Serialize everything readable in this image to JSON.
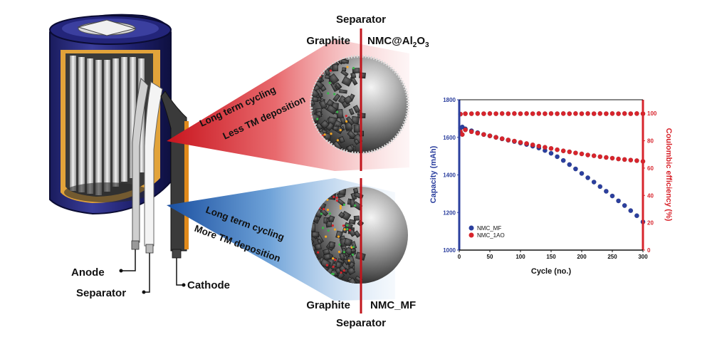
{
  "diagram": {
    "cell_labels": {
      "anode": "Anode",
      "separator": "Separator",
      "cathode": "Cathode"
    },
    "top_panel": {
      "separator": "Separator",
      "left": "Graphite",
      "right_prefix": "NMC@Al",
      "right_sub1": "2",
      "right_mid": "O",
      "right_sub2": "3",
      "beam_line1": "Long term cycling",
      "beam_line2": "Less TM deposition"
    },
    "bottom_panel": {
      "separator": "Separator",
      "left": "Graphite",
      "right": "NMC_MF",
      "beam_line1": "Long term cycling",
      "beam_line2": "More TM deposition"
    },
    "colors": {
      "red_beam": "#d7262e",
      "blue_beam": "#1f5fae",
      "separator_line": "#c0151c",
      "cell_blue": "#1d1f6b",
      "cell_orange": "#e08a1c"
    }
  },
  "chart_data": {
    "type": "scatter",
    "xlabel": "Cycle (no.)",
    "ylabel_left": "Capacity (mAh)",
    "ylabel_right": "Coulombic efficiency (%)",
    "xlim": [
      0,
      300
    ],
    "ylim_left": [
      1000,
      1800
    ],
    "ylim_right": [
      0,
      110
    ],
    "x_ticks": [
      "0",
      "50",
      "100",
      "150",
      "200",
      "250",
      "300"
    ],
    "y_ticks_left": [
      "1000",
      "1200",
      "1400",
      "1600",
      "1800"
    ],
    "y_ticks_right": [
      "0",
      "20",
      "40",
      "60",
      "80",
      "100"
    ],
    "legend_position": "bottom-left",
    "grid": false,
    "series": [
      {
        "name": "NMC_MF",
        "axis": "left",
        "color": "#2b3f9e",
        "x": [
          2,
          5,
          10,
          20,
          30,
          40,
          50,
          60,
          70,
          80,
          90,
          100,
          110,
          120,
          130,
          140,
          150,
          160,
          170,
          180,
          190,
          200,
          210,
          220,
          230,
          240,
          250,
          260,
          270,
          280,
          290,
          300
        ],
        "values": [
          1650,
          1655,
          1645,
          1635,
          1625,
          1615,
          1608,
          1600,
          1592,
          1585,
          1578,
          1570,
          1562,
          1553,
          1543,
          1530,
          1515,
          1497,
          1477,
          1455,
          1432,
          1408,
          1385,
          1362,
          1338,
          1313,
          1288,
          1262,
          1237,
          1210,
          1183,
          1150
        ]
      },
      {
        "name": "NMC_1AO",
        "axis": "left",
        "color": "#d8242c",
        "x": [
          2,
          5,
          10,
          20,
          30,
          40,
          50,
          60,
          70,
          80,
          90,
          100,
          110,
          120,
          130,
          140,
          150,
          160,
          170,
          180,
          190,
          200,
          210,
          220,
          230,
          240,
          250,
          260,
          270,
          280,
          290,
          300
        ],
        "values": [
          1630,
          1615,
          1640,
          1630,
          1622,
          1615,
          1608,
          1600,
          1593,
          1586,
          1580,
          1573,
          1567,
          1560,
          1553,
          1547,
          1541,
          1534,
          1528,
          1523,
          1517,
          1512,
          1506,
          1502,
          1497,
          1493,
          1489,
          1485,
          1482,
          1479,
          1476,
          1472
        ]
      },
      {
        "name": "Coulombic efficiency",
        "axis": "right",
        "color": "#d8242c",
        "x": [
          2,
          10,
          20,
          30,
          40,
          50,
          60,
          70,
          80,
          90,
          100,
          110,
          120,
          130,
          140,
          150,
          160,
          170,
          180,
          190,
          200,
          210,
          220,
          230,
          240,
          250,
          260,
          270,
          280,
          290,
          300
        ],
        "values": [
          99.5,
          99.8,
          99.8,
          99.9,
          99.8,
          99.9,
          99.8,
          99.9,
          99.8,
          99.9,
          99.8,
          99.9,
          99.8,
          99.9,
          99.8,
          99.9,
          99.8,
          99.9,
          99.8,
          99.9,
          99.8,
          99.9,
          99.8,
          99.9,
          99.8,
          99.9,
          99.8,
          99.9,
          99.8,
          99.9,
          99.8
        ]
      }
    ]
  }
}
